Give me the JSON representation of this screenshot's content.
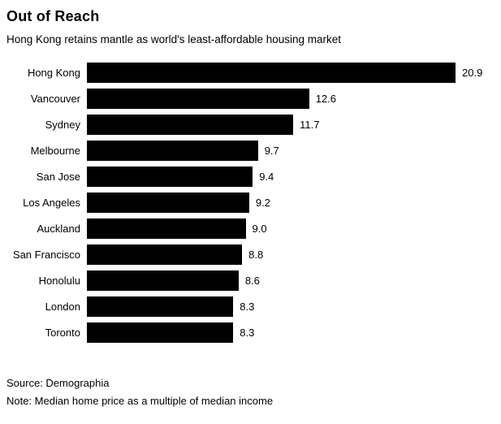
{
  "header": {
    "title": "Out of Reach",
    "subtitle": "Hong Kong retains mantle as world's least-affordable housing market"
  },
  "footer": {
    "source": "Source: Demographia",
    "note": "Note: Median home price as a multiple of median income"
  },
  "chart_data": {
    "type": "bar",
    "orientation": "horizontal",
    "title": "Out of Reach",
    "subtitle": "Hong Kong retains mantle as world's least-affordable housing market",
    "categories": [
      "Hong Kong",
      "Vancouver",
      "Sydney",
      "Melbourne",
      "San Jose",
      "Los Angeles",
      "Auckland",
      "San Francisco",
      "Honolulu",
      "London",
      "Toronto"
    ],
    "values": [
      20.9,
      12.6,
      11.7,
      9.7,
      9.4,
      9.2,
      9.0,
      8.8,
      8.6,
      8.3,
      8.3
    ],
    "xlabel": "",
    "ylabel": "",
    "xlim": [
      0,
      20.9
    ],
    "grid": false,
    "legend": false,
    "bar_color": "#000000",
    "value_label_decimals": 1,
    "source": "Demographia",
    "note": "Median home price as a multiple of median income"
  }
}
